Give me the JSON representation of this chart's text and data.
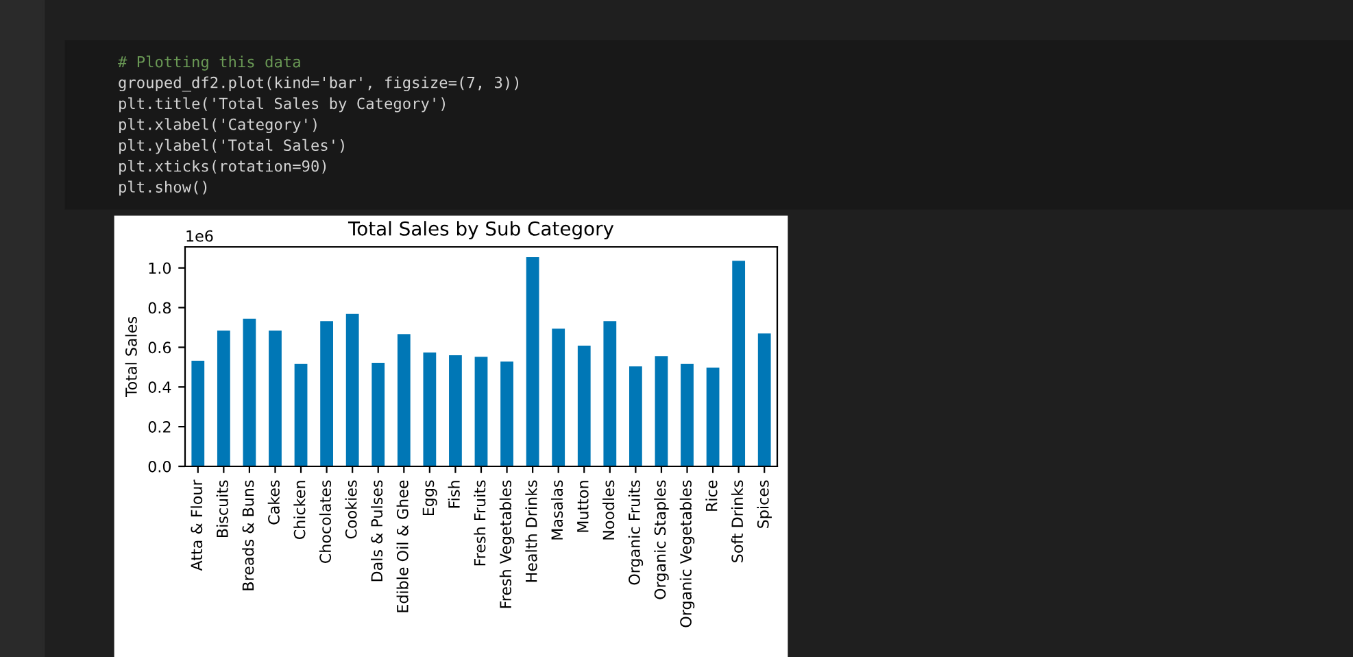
{
  "chart_data": {
    "type": "bar",
    "title": "Total Sales by Sub Category",
    "ylabel": "Total Sales",
    "categories": [
      "Atta & Flour",
      "Biscuits",
      "Breads & Buns",
      "Cakes",
      "Chicken",
      "Chocolates",
      "Cookies",
      "Dals & Pulses",
      "Edible Oil & Ghee",
      "Eggs",
      "Fish",
      "Fresh Fruits",
      "Fresh Vegetables",
      "Health Drinks",
      "Masalas",
      "Mutton",
      "Noodles",
      "Organic Fruits",
      "Organic Staples",
      "Organic Vegetables",
      "Rice",
      "Soft Drinks",
      "Spices"
    ],
    "values": [
      0.532,
      0.684,
      0.744,
      0.684,
      0.516,
      0.732,
      0.768,
      0.522,
      0.666,
      0.574,
      0.56,
      0.552,
      0.528,
      1.054,
      0.694,
      0.608,
      0.732,
      0.504,
      0.556,
      0.516,
      0.498,
      1.036,
      0.67
    ],
    "color": "#0077b6",
    "ylim": [
      0,
      1.106
    ],
    "yticks": [
      {
        "value": 0,
        "label": "0.0"
      },
      0.2,
      0.4,
      0.6,
      0.8,
      {
        "value": 1,
        "label": "1.0"
      }
    ],
    "grid": false,
    "annotations": [
      "1e6",
      "# Plotting this data",
      "grouped_df2.plot(kind='bar', figsize=(7, 3))",
      "plt.title('Total Sales by Category')",
      "plt.xlabel('Category')",
      "plt.ylabel('Total Sales')",
      "plt.xticks(rotation=90)",
      "plt.show()"
    ]
  }
}
